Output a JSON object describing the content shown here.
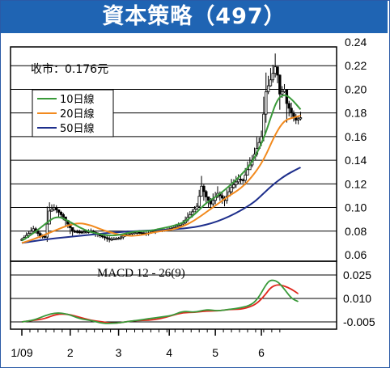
{
  "header": {
    "title": "資本策略（497）"
  },
  "chart_data": [
    {
      "type": "candlestick",
      "price_label": "收市：0.176元",
      "ylim": [
        0.06,
        0.24
      ],
      "y_ticks": [
        "0.24",
        "0.22",
        "0.20",
        "0.18",
        "0.16",
        "0.14",
        "0.12",
        "0.10",
        "0.08",
        "0.06"
      ],
      "legend": [
        {
          "label": "10日線",
          "color": "#3a9a3a"
        },
        {
          "label": "20日線",
          "color": "#f28a1e"
        },
        {
          "label": "50日線",
          "color": "#1e2f8c"
        }
      ],
      "x_month_positions": [
        0,
        21,
        42,
        64,
        84,
        104
      ],
      "x_range": [
        0,
        124
      ],
      "ma10": [
        [
          0,
          0.072
        ],
        [
          5,
          0.078
        ],
        [
          10,
          0.086
        ],
        [
          15,
          0.093
        ],
        [
          20,
          0.089
        ],
        [
          25,
          0.083
        ],
        [
          30,
          0.079
        ],
        [
          35,
          0.077
        ],
        [
          40,
          0.076
        ],
        [
          45,
          0.078
        ],
        [
          50,
          0.08
        ],
        [
          55,
          0.08
        ],
        [
          60,
          0.082
        ],
        [
          65,
          0.084
        ],
        [
          70,
          0.087
        ],
        [
          75,
          0.094
        ],
        [
          80,
          0.104
        ],
        [
          85,
          0.11
        ],
        [
          90,
          0.118
        ],
        [
          95,
          0.127
        ],
        [
          100,
          0.138
        ],
        [
          105,
          0.158
        ],
        [
          108,
          0.176
        ],
        [
          111,
          0.192
        ],
        [
          114,
          0.196
        ],
        [
          117,
          0.192
        ],
        [
          121,
          0.183
        ]
      ],
      "ma20": [
        [
          0,
          0.07
        ],
        [
          5,
          0.073
        ],
        [
          10,
          0.077
        ],
        [
          15,
          0.081
        ],
        [
          20,
          0.085
        ],
        [
          25,
          0.087
        ],
        [
          30,
          0.085
        ],
        [
          35,
          0.081
        ],
        [
          40,
          0.078
        ],
        [
          45,
          0.076
        ],
        [
          50,
          0.076
        ],
        [
          55,
          0.078
        ],
        [
          60,
          0.08
        ],
        [
          65,
          0.081
        ],
        [
          70,
          0.084
        ],
        [
          75,
          0.089
        ],
        [
          80,
          0.096
        ],
        [
          85,
          0.103
        ],
        [
          90,
          0.11
        ],
        [
          95,
          0.116
        ],
        [
          100,
          0.126
        ],
        [
          105,
          0.14
        ],
        [
          110,
          0.162
        ],
        [
          114,
          0.174
        ],
        [
          118,
          0.176
        ],
        [
          121,
          0.178
        ]
      ],
      "ma50": [
        [
          0,
          0.07
        ],
        [
          10,
          0.073
        ],
        [
          20,
          0.075
        ],
        [
          30,
          0.077
        ],
        [
          40,
          0.079
        ],
        [
          50,
          0.08
        ],
        [
          60,
          0.081
        ],
        [
          70,
          0.082
        ],
        [
          80,
          0.085
        ],
        [
          90,
          0.092
        ],
        [
          100,
          0.103
        ],
        [
          105,
          0.112
        ],
        [
          110,
          0.121
        ],
        [
          115,
          0.128
        ],
        [
          121,
          0.134
        ]
      ],
      "price_series": [
        [
          0,
          0.073
        ],
        [
          3,
          0.078
        ],
        [
          5,
          0.082
        ],
        [
          8,
          0.076
        ],
        [
          10,
          0.075
        ],
        [
          12,
          0.097
        ],
        [
          14,
          0.1
        ],
        [
          16,
          0.096
        ],
        [
          18,
          0.092
        ],
        [
          22,
          0.08
        ],
        [
          26,
          0.079
        ],
        [
          30,
          0.08
        ],
        [
          34,
          0.076
        ],
        [
          38,
          0.073
        ],
        [
          42,
          0.074
        ],
        [
          46,
          0.078
        ],
        [
          50,
          0.079
        ],
        [
          54,
          0.078
        ],
        [
          58,
          0.08
        ],
        [
          62,
          0.081
        ],
        [
          66,
          0.083
        ],
        [
          70,
          0.087
        ],
        [
          73,
          0.094
        ],
        [
          76,
          0.101
        ],
        [
          78,
          0.118
        ],
        [
          80,
          0.109
        ],
        [
          82,
          0.103
        ],
        [
          85,
          0.112
        ],
        [
          88,
          0.106
        ],
        [
          91,
          0.117
        ],
        [
          94,
          0.124
        ],
        [
          96,
          0.123
        ],
        [
          98,
          0.132
        ],
        [
          100,
          0.14
        ],
        [
          102,
          0.15
        ],
        [
          104,
          0.16
        ],
        [
          106,
          0.198
        ],
        [
          108,
          0.208
        ],
        [
          110,
          0.219
        ],
        [
          111,
          0.212
        ],
        [
          112,
          0.196
        ],
        [
          114,
          0.2
        ],
        [
          115,
          0.188
        ],
        [
          117,
          0.18
        ],
        [
          119,
          0.174
        ],
        [
          121,
          0.176
        ]
      ]
    },
    {
      "type": "line",
      "title": "MACD 12 - 26(9)",
      "ylim": [
        -0.005,
        0.025
      ],
      "y_ticks": [
        "0.025",
        "0.010",
        "-0.005"
      ],
      "x_ticks": [
        "1/09",
        "2",
        "3",
        "4",
        "5",
        "6"
      ],
      "macd": [
        [
          0,
          -0.005
        ],
        [
          5,
          -0.004
        ],
        [
          10,
          -0.001
        ],
        [
          15,
          0.001
        ],
        [
          20,
          0.0
        ],
        [
          25,
          -0.003
        ],
        [
          30,
          -0.004
        ],
        [
          35,
          -0.006
        ],
        [
          40,
          -0.006
        ],
        [
          45,
          -0.005
        ],
        [
          50,
          -0.004
        ],
        [
          55,
          -0.003
        ],
        [
          60,
          -0.002
        ],
        [
          65,
          -0.001
        ],
        [
          70,
          0.002
        ],
        [
          75,
          0.001
        ],
        [
          80,
          0.003
        ],
        [
          85,
          0.002
        ],
        [
          90,
          0.003
        ],
        [
          95,
          0.004
        ],
        [
          100,
          0.006
        ],
        [
          103,
          0.011
        ],
        [
          106,
          0.019
        ],
        [
          108,
          0.022
        ],
        [
          111,
          0.021
        ],
        [
          114,
          0.016
        ],
        [
          117,
          0.01
        ],
        [
          120,
          0.008
        ]
      ],
      "signal": [
        [
          0,
          -0.005
        ],
        [
          5,
          -0.004
        ],
        [
          10,
          -0.003
        ],
        [
          15,
          0.0
        ],
        [
          20,
          0.0
        ],
        [
          25,
          -0.002
        ],
        [
          30,
          -0.004
        ],
        [
          35,
          -0.005
        ],
        [
          40,
          -0.006
        ],
        [
          45,
          -0.005
        ],
        [
          50,
          -0.004
        ],
        [
          55,
          -0.004
        ],
        [
          60,
          -0.003
        ],
        [
          65,
          -0.001
        ],
        [
          70,
          0.001
        ],
        [
          75,
          0.001
        ],
        [
          80,
          0.002
        ],
        [
          85,
          0.002
        ],
        [
          90,
          0.003
        ],
        [
          95,
          0.003
        ],
        [
          100,
          0.005
        ],
        [
          103,
          0.008
        ],
        [
          106,
          0.013
        ],
        [
          108,
          0.017
        ],
        [
          111,
          0.019
        ],
        [
          114,
          0.018
        ],
        [
          117,
          0.016
        ],
        [
          120,
          0.013
        ]
      ]
    }
  ]
}
